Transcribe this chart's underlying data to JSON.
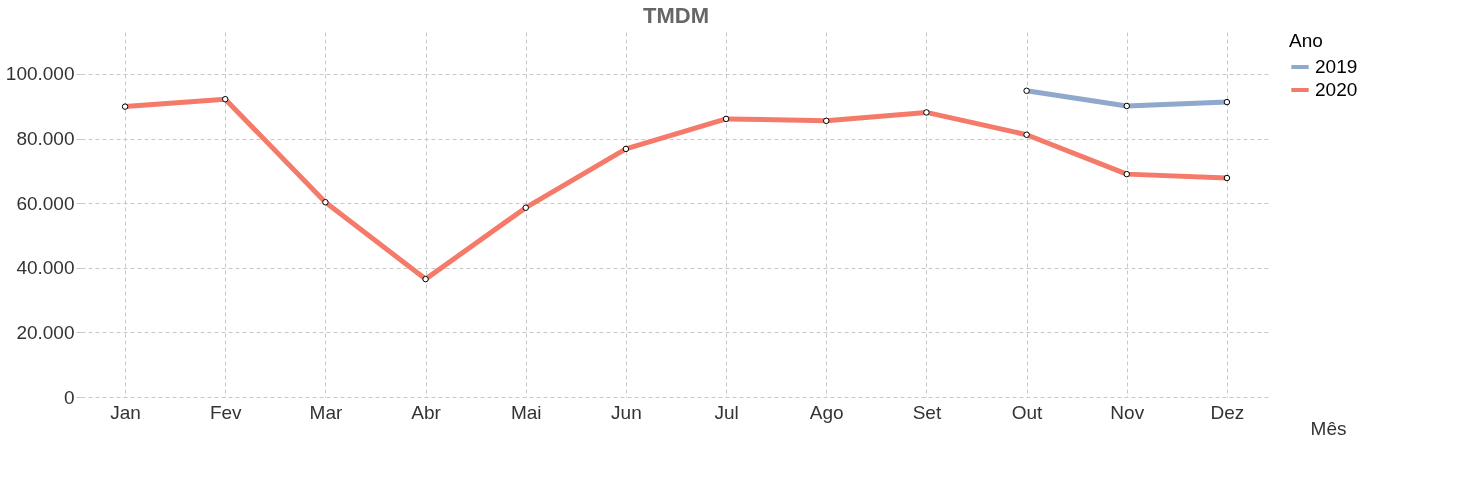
{
  "chart_data": {
    "type": "line",
    "title": "TMDM",
    "xlabel": "Mês",
    "legend_title": "Ano",
    "categories": [
      "Jan",
      "Fev",
      "Mar",
      "Abr",
      "Mai",
      "Jun",
      "Jul",
      "Ago",
      "Set",
      "Out",
      "Nov",
      "Dez"
    ],
    "series": [
      {
        "name": "2019",
        "color": "#8fa8cc",
        "values": [
          null,
          null,
          null,
          null,
          null,
          null,
          null,
          null,
          null,
          94800,
          90100,
          91300
        ]
      },
      {
        "name": "2020",
        "color": "#f47a6a",
        "values": [
          89900,
          92200,
          60300,
          36500,
          58600,
          76800,
          86100,
          85500,
          88100,
          81200,
          69000,
          67800
        ]
      }
    ],
    "ylim": [
      0,
      113000
    ],
    "yticks": [
      0,
      {
        "value": 20000,
        "label": "20.000"
      },
      {
        "value": 40000,
        "label": "40.000"
      },
      {
        "value": 60000,
        "label": "60.000"
      },
      {
        "value": 80000,
        "label": "80.000"
      },
      {
        "value": 100000,
        "label": "100.000"
      }
    ],
    "grid": true,
    "legend": "top right",
    "marker": "circle",
    "line_style": "solid"
  }
}
